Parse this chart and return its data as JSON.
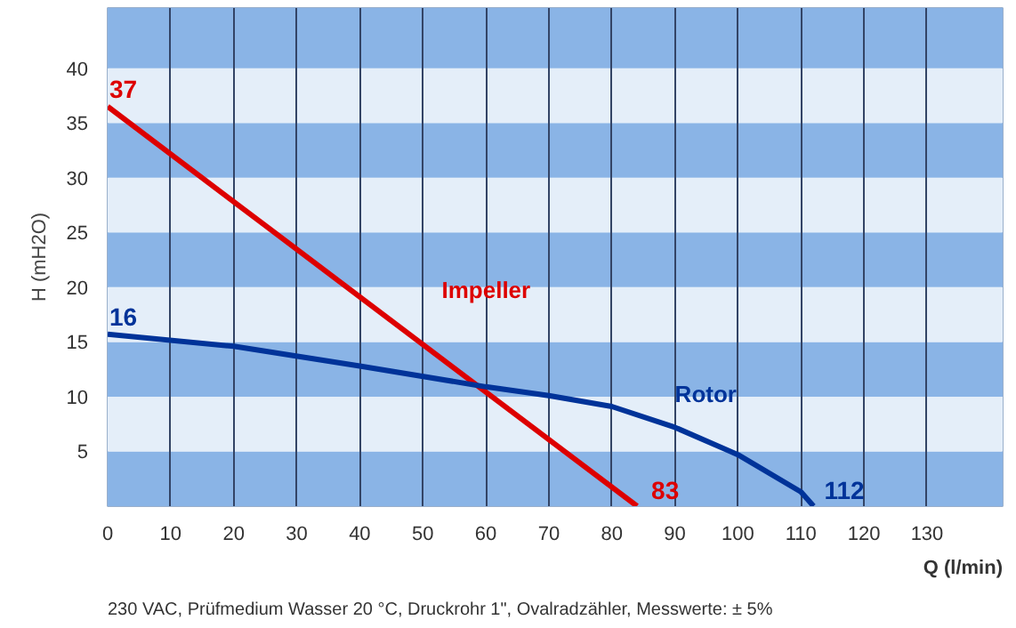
{
  "chart_data": {
    "type": "line",
    "xlabel": "Q (l/min)",
    "ylabel": "H (mH2O)",
    "xlim": [
      0,
      142
    ],
    "ylim": [
      0,
      45.5
    ],
    "xticks": [
      0,
      10,
      20,
      30,
      40,
      50,
      60,
      70,
      80,
      90,
      100,
      110,
      120,
      130
    ],
    "yticks": [
      5,
      10,
      15,
      20,
      25,
      30,
      35,
      40
    ],
    "grid": "x",
    "marker": "none",
    "line_style": "solid",
    "series": [
      {
        "name": "Impeller",
        "color": "#dd0000",
        "x": [
          0,
          84
        ],
        "values": [
          36.5,
          0
        ]
      },
      {
        "name": "Rotor",
        "color": "#003399",
        "x": [
          0,
          20,
          40,
          60,
          70,
          80,
          90,
          100,
          110,
          112
        ],
        "values": [
          15.7,
          14.6,
          12.8,
          10.9,
          10.1,
          9.1,
          7.2,
          4.7,
          1.3,
          0
        ]
      }
    ],
    "bands": [
      {
        "axis": "y",
        "from": 0,
        "to": 5,
        "color": "#8ab4e6"
      },
      {
        "axis": "y",
        "from": 5,
        "to": 10,
        "color": "#e4eef9"
      },
      {
        "axis": "y",
        "from": 10,
        "to": 15,
        "color": "#8ab4e6"
      },
      {
        "axis": "y",
        "from": 15,
        "to": 20,
        "color": "#e4eef9"
      },
      {
        "axis": "y",
        "from": 20,
        "to": 25,
        "color": "#8ab4e6"
      },
      {
        "axis": "y",
        "from": 25,
        "to": 30,
        "color": "#e4eef9"
      },
      {
        "axis": "y",
        "from": 30,
        "to": 35,
        "color": "#8ab4e6"
      },
      {
        "axis": "y",
        "from": 35,
        "to": 40,
        "color": "#e4eef9"
      },
      {
        "axis": "y",
        "from": 40,
        "to": 45.5,
        "color": "#8ab4e6"
      }
    ],
    "annotations": [
      {
        "text": "37",
        "x": 0,
        "y": 36.5
      },
      {
        "text": "16",
        "x": 0,
        "y": 15.7
      },
      {
        "text": "83",
        "x": 84,
        "y": 0
      },
      {
        "text": "112",
        "x": 112,
        "y": 0
      },
      "230 VAC, Prüfmedium Wasser 20 °C,  Druckrohr 1\",  Ovalradzähler,  Messwerte: ± 5%"
    ]
  }
}
